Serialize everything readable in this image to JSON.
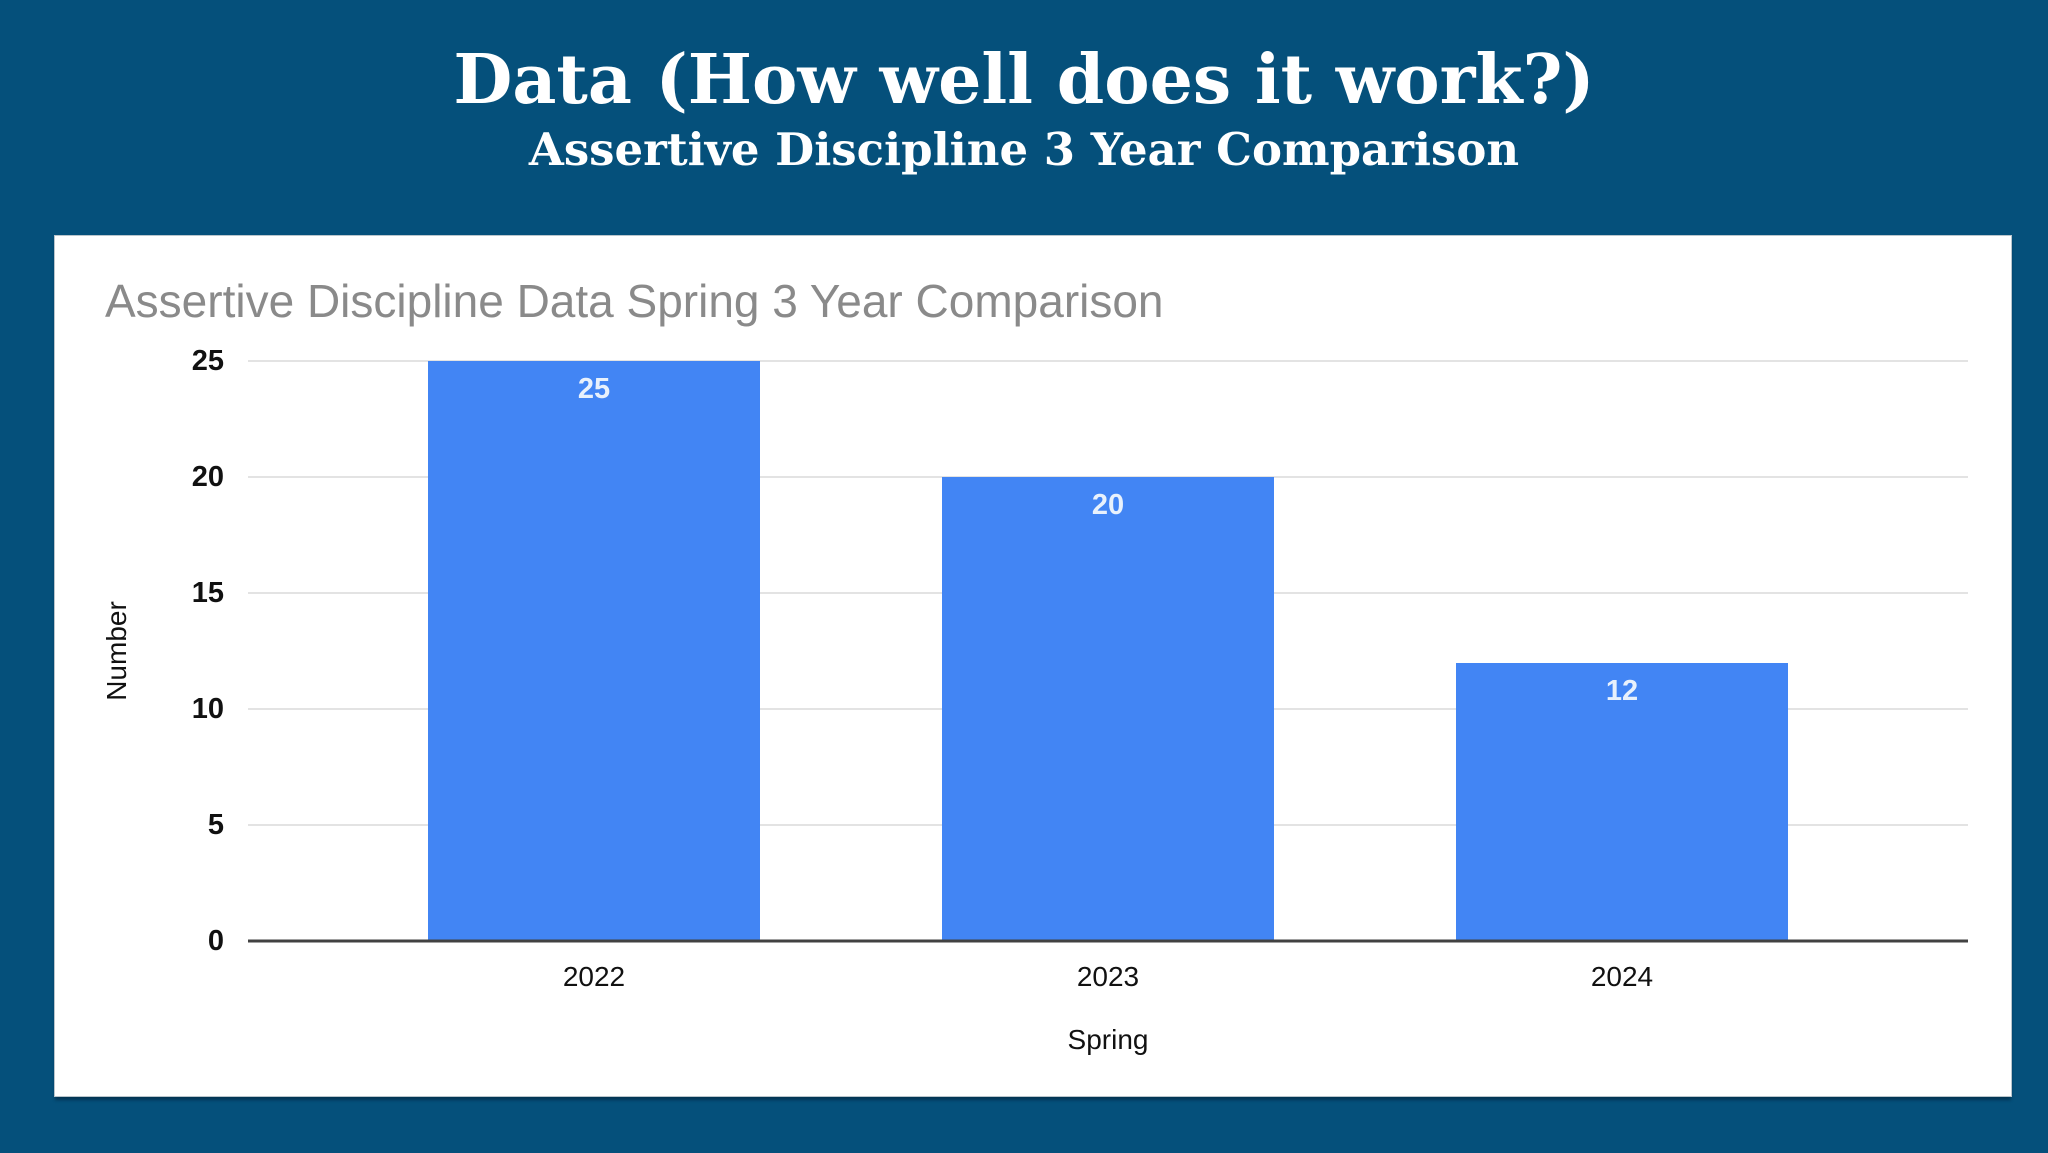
{
  "slide": {
    "title": "Data (How well does it work?)",
    "subtitle": "Assertive Discipline 3 Year Comparison",
    "background_color": "#05507B",
    "title_color": "#FFFFFF"
  },
  "chart_data": {
    "type": "bar",
    "title": "Assertive Discipline Data Spring 3 Year Comparison",
    "categories": [
      "2022",
      "2023",
      "2024"
    ],
    "series": [
      {
        "name": "Spring",
        "values": [
          25,
          20,
          12
        ]
      }
    ],
    "values": [
      25,
      20,
      12
    ],
    "data_labels": [
      "25",
      "20",
      "12"
    ],
    "xlabel": "Spring",
    "ylabel": "Number",
    "ylim": [
      0,
      25
    ],
    "yticks": [
      0,
      5,
      10,
      15,
      20,
      25
    ],
    "grid": true,
    "legend_position": "none",
    "bar_color": "#4285F4",
    "data_label_color": "#E8F1FC",
    "title_color": "#8A8A8A",
    "gridline_color": "#E3E3E3",
    "axis_line_color": "#424242"
  }
}
